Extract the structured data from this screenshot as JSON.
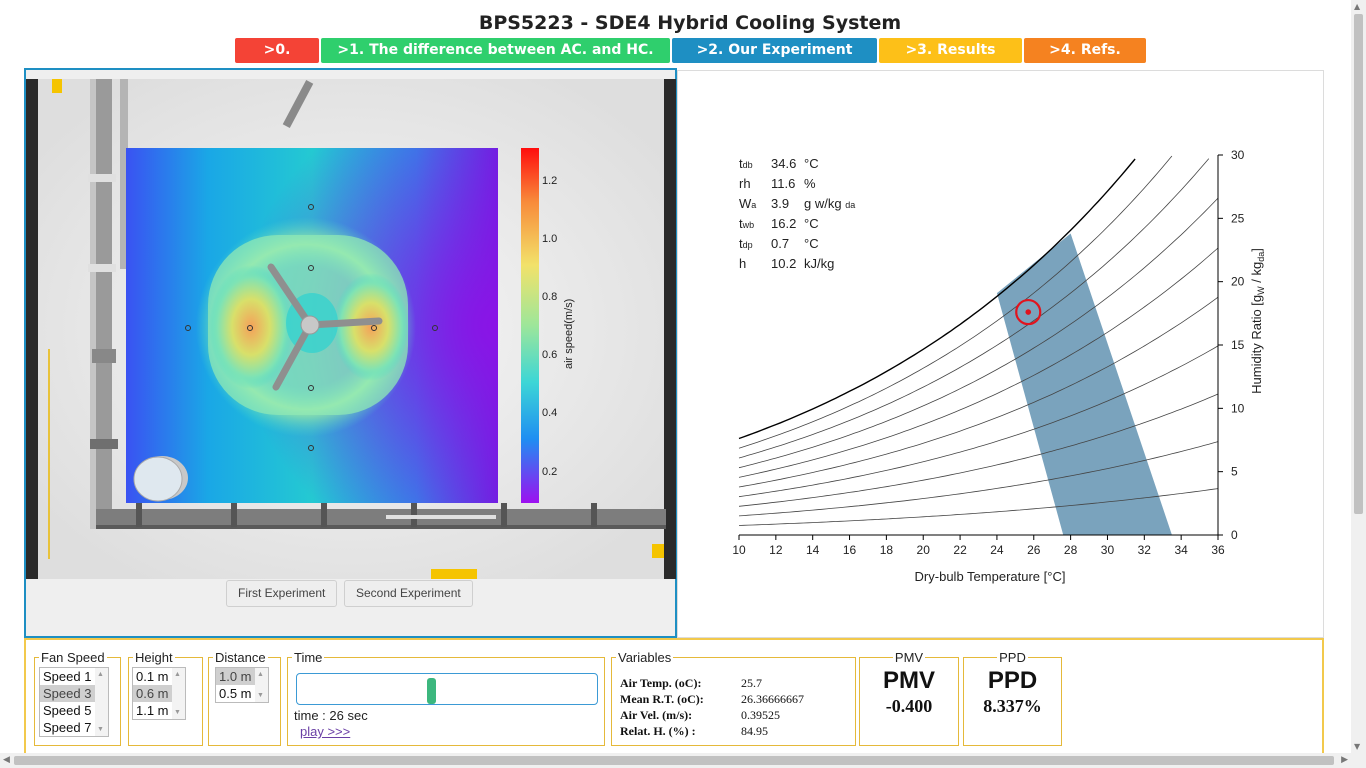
{
  "page": {
    "title": "BPS5223 - SDE4 Hybrid Cooling System"
  },
  "nav": [
    {
      "label": ">0.",
      "color": "#f44336"
    },
    {
      "label": ">1. The difference between AC. and HC.",
      "color": "#2fcf6d"
    },
    {
      "label": ">2. Our Experiment",
      "color": "#1e8fc3"
    },
    {
      "label": ">3. Results",
      "color": "#fdc018"
    },
    {
      "label": ">4. Refs.",
      "color": "#f58220"
    }
  ],
  "viz": {
    "colorbar": {
      "label": "air speed(m/s)",
      "ticks": [
        "1.2",
        "1.0",
        "0.8",
        "0.6",
        "0.4",
        "0.2"
      ]
    },
    "buttons": {
      "first": "First Experiment",
      "second": "Second Experiment"
    }
  },
  "psychro": {
    "params": [
      {
        "sym": "t",
        "sub": "db",
        "value": "34.6",
        "unit": "°C",
        "usub": ""
      },
      {
        "sym": "rh",
        "sub": "",
        "value": "11.6",
        "unit": "%",
        "usub": ""
      },
      {
        "sym": "W",
        "sub": "a",
        "value": "3.9",
        "unit": "g w/kg",
        "usub": "da"
      },
      {
        "sym": "t",
        "sub": "wb",
        "value": "16.2",
        "unit": "°C",
        "usub": ""
      },
      {
        "sym": "t",
        "sub": "dp",
        "value": "0.7",
        "unit": "°C",
        "usub": ""
      },
      {
        "sym": "h",
        "sub": "",
        "value": "10.2",
        "unit": "kJ/kg",
        "usub": ""
      }
    ]
  },
  "chart_data": {
    "type": "line",
    "title": "",
    "xlabel": "Dry-bulb Temperature [°C]",
    "ylabel": "Humidity Ratio [gW / kgda]",
    "xlim": [
      10,
      36
    ],
    "ylim": [
      0,
      30
    ],
    "xticks": [
      "10",
      "12",
      "14",
      "16",
      "18",
      "20",
      "22",
      "24",
      "26",
      "28",
      "30",
      "32",
      "34",
      "36"
    ],
    "yticks": [
      "0",
      "5",
      "10",
      "15",
      "20",
      "25",
      "30"
    ],
    "rh_curves": [
      1.0,
      0.9,
      0.8,
      0.7,
      0.6,
      0.5,
      0.4,
      0.3,
      0.2,
      0.1
    ],
    "comfort_zone": [
      [
        24,
        19.1
      ],
      [
        28,
        23.8
      ],
      [
        33.5,
        0
      ],
      [
        27.6,
        0
      ]
    ],
    "state_point": {
      "x": 25.7,
      "y": 17.6
    },
    "colors": {
      "zone": "#7aa3bd",
      "marker": "#e1141e"
    }
  },
  "controls": {
    "fan_speed": {
      "legend": "Fan Speed",
      "options": [
        "Speed 1",
        "Speed 3",
        "Speed 5",
        "Speed 7"
      ],
      "selected": "Speed 3"
    },
    "height": {
      "legend": "Height",
      "options": [
        "0.1 m",
        "0.6 m",
        "1.1 m"
      ],
      "selected": "0.6 m"
    },
    "distance": {
      "legend": "Distance",
      "options": [
        "1.0 m",
        "0.5 m"
      ],
      "selected": "1.0 m"
    },
    "time": {
      "legend": "Time",
      "text": "time : 26 sec",
      "play": "play >>>",
      "position": 0.45
    },
    "variables": {
      "legend": "Variables",
      "rows": [
        {
          "k": "Air Temp. (oC):",
          "v": "25.7"
        },
        {
          "k": "Mean R.T. (oC):",
          "v": "26.36666667"
        },
        {
          "k": "Air Vel. (m/s):",
          "v": "0.39525"
        },
        {
          "k": "Relat. H. (%) :",
          "v": "84.95"
        }
      ]
    },
    "pmv": {
      "legend": "PMV",
      "label": "PMV",
      "value": "-0.400"
    },
    "ppd": {
      "legend": "PPD",
      "label": "PPD",
      "value": "8.337%"
    }
  }
}
